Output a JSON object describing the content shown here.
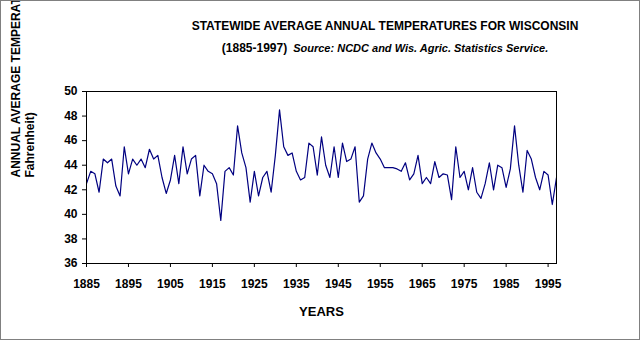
{
  "chart_data": {
    "type": "line",
    "title": "STATEWIDE AVERAGE ANNUAL TEMPERATURES FOR WISCONSIN",
    "subtitle": "(1885-1997)",
    "source": "Source: NCDC and Wis. Agric. Statistics Service.",
    "x_label": "YEARS",
    "y_label": "ANNUAL AVERAGE TEMPERATURE (degrees Fahrenheit)",
    "x": [
      1885,
      1886,
      1887,
      1888,
      1889,
      1890,
      1891,
      1892,
      1893,
      1894,
      1895,
      1896,
      1897,
      1898,
      1899,
      1900,
      1901,
      1902,
      1903,
      1904,
      1905,
      1906,
      1907,
      1908,
      1909,
      1910,
      1911,
      1912,
      1913,
      1914,
      1915,
      1916,
      1917,
      1918,
      1919,
      1920,
      1921,
      1922,
      1923,
      1924,
      1925,
      1926,
      1927,
      1928,
      1929,
      1930,
      1931,
      1932,
      1933,
      1934,
      1935,
      1936,
      1937,
      1938,
      1939,
      1940,
      1941,
      1942,
      1943,
      1944,
      1945,
      1946,
      1947,
      1948,
      1949,
      1950,
      1951,
      1952,
      1953,
      1954,
      1955,
      1956,
      1957,
      1958,
      1959,
      1960,
      1961,
      1962,
      1963,
      1964,
      1965,
      1966,
      1967,
      1968,
      1969,
      1970,
      1971,
      1972,
      1973,
      1974,
      1975,
      1976,
      1977,
      1978,
      1979,
      1980,
      1981,
      1982,
      1983,
      1984,
      1985,
      1986,
      1987,
      1988,
      1989,
      1990,
      1991,
      1992,
      1993,
      1994,
      1995,
      1996,
      1997
    ],
    "values": [
      42.5,
      43.5,
      43.3,
      41.8,
      44.5,
      44.2,
      44.5,
      42.3,
      41.5,
      45.5,
      43.3,
      44.5,
      44.0,
      44.5,
      43.8,
      45.3,
      44.5,
      44.8,
      43.0,
      41.7,
      42.8,
      44.8,
      42.5,
      45.5,
      43.3,
      44.5,
      44.8,
      41.5,
      44.0,
      43.5,
      43.3,
      42.5,
      39.5,
      43.5,
      43.8,
      43.2,
      47.2,
      45.0,
      43.8,
      41.0,
      43.5,
      41.5,
      43.0,
      43.5,
      41.8,
      44.8,
      48.5,
      45.5,
      44.8,
      45.0,
      43.5,
      42.8,
      43.0,
      45.8,
      45.5,
      43.2,
      46.3,
      44.0,
      43.0,
      45.5,
      43.0,
      45.8,
      44.3,
      44.5,
      45.5,
      41.0,
      41.5,
      44.5,
      45.8,
      45.0,
      44.5,
      43.8,
      43.8,
      43.8,
      43.7,
      43.5,
      44.2,
      42.8,
      43.3,
      44.8,
      42.5,
      43.0,
      42.5,
      44.3,
      43.0,
      43.3,
      43.2,
      41.2,
      45.5,
      43.0,
      43.5,
      42.0,
      43.8,
      41.8,
      41.3,
      42.5,
      44.2,
      42.0,
      44.0,
      43.8,
      42.2,
      43.7,
      47.2,
      44.0,
      41.8,
      45.2,
      44.5,
      43.0,
      42.0,
      43.5,
      43.2,
      40.8,
      43.0
    ],
    "color": "#000080",
    "xlim": [
      1885,
      1997
    ],
    "xticks": [
      1885,
      1895,
      1905,
      1915,
      1925,
      1935,
      1945,
      1955,
      1965,
      1975,
      1985,
      1995
    ],
    "ylim": [
      36,
      50
    ],
    "yticks": [
      36,
      38,
      40,
      42,
      44,
      46,
      48,
      50
    ],
    "grid": false
  }
}
